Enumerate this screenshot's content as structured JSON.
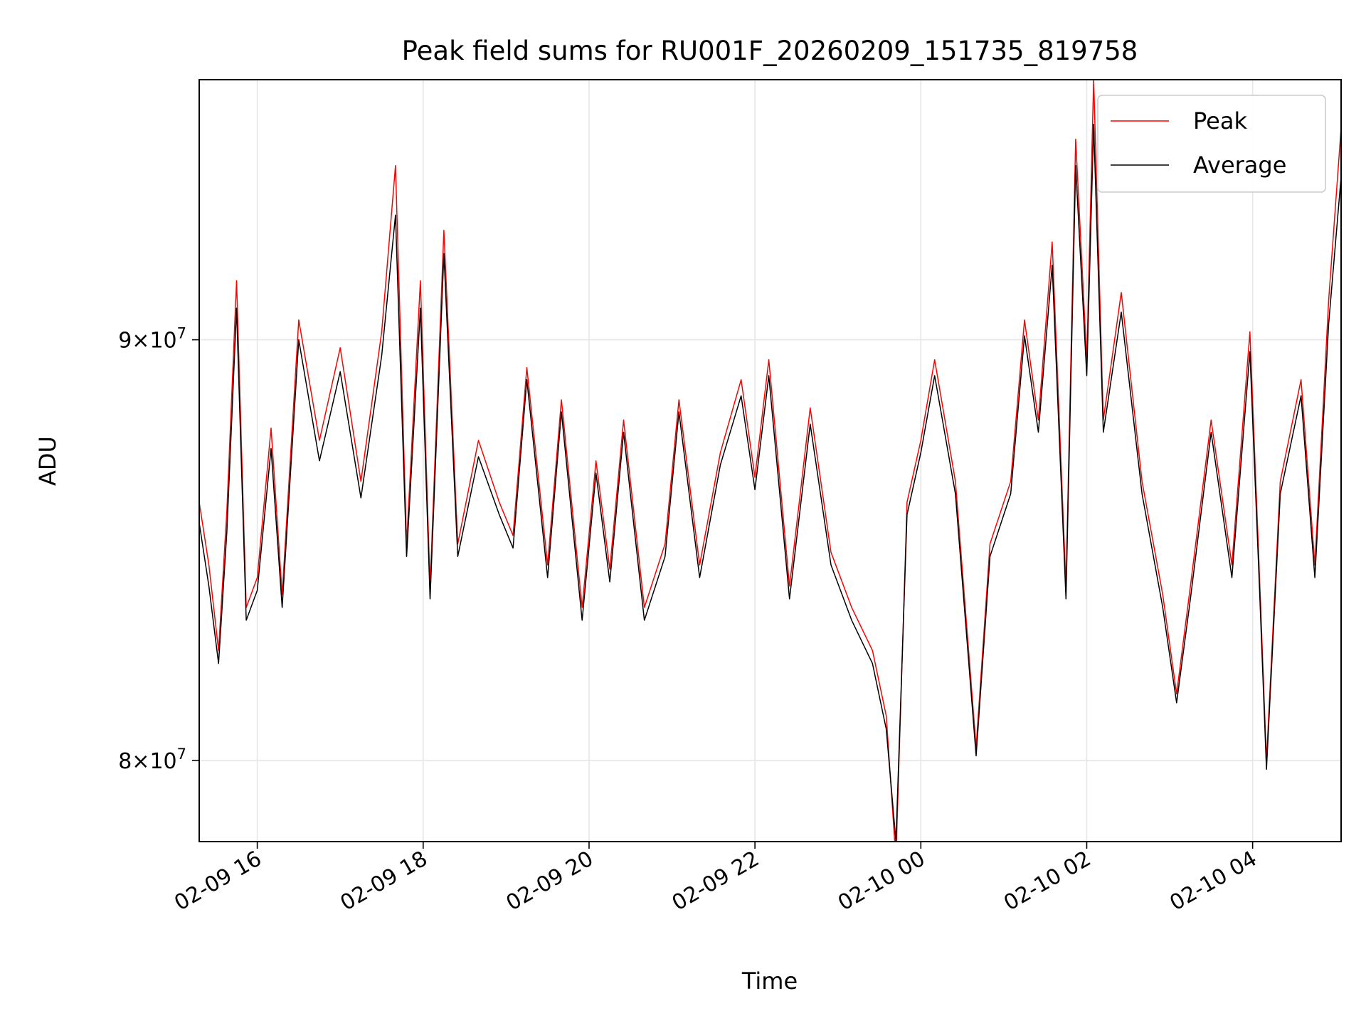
{
  "chart_data": {
    "type": "line",
    "title": "Peak field sums for RU001F_20260209_151735_819758",
    "xlabel": "Time",
    "ylabel": "ADU",
    "y_scale": "log",
    "xlim": [
      "2026-02-09 15:18",
      "2026-02-10 05:04"
    ],
    "ylim": [
      78200000,
      96800000
    ],
    "grid": true,
    "legend_position": "top-right",
    "x_ticks": [
      {
        "value": "2026-02-09 16:00",
        "label": "02-09 16"
      },
      {
        "value": "2026-02-09 18:00",
        "label": "02-09 18"
      },
      {
        "value": "2026-02-09 20:00",
        "label": "02-09 20"
      },
      {
        "value": "2026-02-09 22:00",
        "label": "02-09 22"
      },
      {
        "value": "2026-02-10 00:00",
        "label": "02-10 00"
      },
      {
        "value": "2026-02-10 02:00",
        "label": "02-10 02"
      },
      {
        "value": "2026-02-10 04:00",
        "label": "02-10 04"
      }
    ],
    "y_ticks": [
      {
        "value": 80000000,
        "mantissa": "8",
        "exponent": "7"
      },
      {
        "value": 90000000,
        "mantissa": "9",
        "exponent": "7"
      }
    ],
    "series": [
      {
        "name": "Peak",
        "color": "#ff0000",
        "points": [
          [
            "2026-02-09 15:18",
            86000000
          ],
          [
            "2026-02-09 15:25",
            84500000
          ],
          [
            "2026-02-09 15:32",
            82500000
          ],
          [
            "2026-02-09 15:38",
            85800000
          ],
          [
            "2026-02-09 15:45",
            91500000
          ],
          [
            "2026-02-09 15:52",
            83500000
          ],
          [
            "2026-02-09 16:00",
            84200000
          ],
          [
            "2026-02-09 16:10",
            87800000
          ],
          [
            "2026-02-09 16:18",
            83800000
          ],
          [
            "2026-02-09 16:30",
            90500000
          ],
          [
            "2026-02-09 16:45",
            87500000
          ],
          [
            "2026-02-09 17:00",
            89800000
          ],
          [
            "2026-02-09 17:15",
            86500000
          ],
          [
            "2026-02-09 17:30",
            90200000
          ],
          [
            "2026-02-09 17:40",
            94500000
          ],
          [
            "2026-02-09 17:48",
            85000000
          ],
          [
            "2026-02-09 17:58",
            91500000
          ],
          [
            "2026-02-09 18:05",
            84000000
          ],
          [
            "2026-02-09 18:15",
            92800000
          ],
          [
            "2026-02-09 18:25",
            85000000
          ],
          [
            "2026-02-09 18:40",
            87500000
          ],
          [
            "2026-02-09 18:55",
            86000000
          ],
          [
            "2026-02-09 19:05",
            85200000
          ],
          [
            "2026-02-09 19:15",
            89300000
          ],
          [
            "2026-02-09 19:30",
            84500000
          ],
          [
            "2026-02-09 19:40",
            88500000
          ],
          [
            "2026-02-09 19:55",
            83500000
          ],
          [
            "2026-02-09 20:05",
            87000000
          ],
          [
            "2026-02-09 20:15",
            84400000
          ],
          [
            "2026-02-09 20:25",
            88000000
          ],
          [
            "2026-02-09 20:40",
            83500000
          ],
          [
            "2026-02-09 20:55",
            85000000
          ],
          [
            "2026-02-09 21:05",
            88500000
          ],
          [
            "2026-02-09 21:20",
            84500000
          ],
          [
            "2026-02-09 21:35",
            87200000
          ],
          [
            "2026-02-09 21:50",
            89000000
          ],
          [
            "2026-02-09 22:00",
            86600000
          ],
          [
            "2026-02-09 22:10",
            89500000
          ],
          [
            "2026-02-09 22:25",
            84000000
          ],
          [
            "2026-02-09 22:40",
            88300000
          ],
          [
            "2026-02-09 22:55",
            84800000
          ],
          [
            "2026-02-09 23:10",
            83500000
          ],
          [
            "2026-02-09 23:25",
            82500000
          ],
          [
            "2026-02-09 23:35",
            81000000
          ],
          [
            "2026-02-09 23:42",
            77800000
          ],
          [
            "2026-02-09 23:50",
            86000000
          ],
          [
            "2026-02-10 00:00",
            87500000
          ],
          [
            "2026-02-10 00:10",
            89500000
          ],
          [
            "2026-02-10 00:25",
            86500000
          ],
          [
            "2026-02-10 00:40",
            80300000
          ],
          [
            "2026-02-10 00:50",
            85000000
          ],
          [
            "2026-02-10 01:05",
            86500000
          ],
          [
            "2026-02-10 01:15",
            90500000
          ],
          [
            "2026-02-10 01:25",
            88000000
          ],
          [
            "2026-02-10 01:35",
            92500000
          ],
          [
            "2026-02-10 01:45",
            84000000
          ],
          [
            "2026-02-10 01:52",
            95200000
          ],
          [
            "2026-02-10 02:00",
            89500000
          ],
          [
            "2026-02-10 02:05",
            96800000
          ],
          [
            "2026-02-10 02:12",
            88000000
          ],
          [
            "2026-02-10 02:25",
            91200000
          ],
          [
            "2026-02-10 02:40",
            86500000
          ],
          [
            "2026-02-10 02:55",
            83800000
          ],
          [
            "2026-02-10 03:05",
            81500000
          ],
          [
            "2026-02-10 03:15",
            84000000
          ],
          [
            "2026-02-10 03:30",
            88000000
          ],
          [
            "2026-02-10 03:45",
            84500000
          ],
          [
            "2026-02-10 03:58",
            90200000
          ],
          [
            "2026-02-10 04:05",
            84200000
          ],
          [
            "2026-02-10 04:10",
            80000000
          ],
          [
            "2026-02-10 04:20",
            86500000
          ],
          [
            "2026-02-10 04:35",
            89000000
          ],
          [
            "2026-02-10 04:45",
            84500000
          ],
          [
            "2026-02-10 04:55",
            91000000
          ],
          [
            "2026-02-10 05:04",
            95500000
          ]
        ]
      },
      {
        "name": "Average",
        "color": "#000000",
        "points": [
          [
            "2026-02-09 15:18",
            85500000
          ],
          [
            "2026-02-09 15:25",
            84000000
          ],
          [
            "2026-02-09 15:32",
            82200000
          ],
          [
            "2026-02-09 15:38",
            85300000
          ],
          [
            "2026-02-09 15:45",
            90800000
          ],
          [
            "2026-02-09 15:52",
            83200000
          ],
          [
            "2026-02-09 16:00",
            83900000
          ],
          [
            "2026-02-09 16:10",
            87300000
          ],
          [
            "2026-02-09 16:18",
            83500000
          ],
          [
            "2026-02-09 16:30",
            90000000
          ],
          [
            "2026-02-09 16:45",
            87000000
          ],
          [
            "2026-02-09 17:00",
            89200000
          ],
          [
            "2026-02-09 17:15",
            86100000
          ],
          [
            "2026-02-09 17:30",
            89600000
          ],
          [
            "2026-02-09 17:40",
            93200000
          ],
          [
            "2026-02-09 17:48",
            84700000
          ],
          [
            "2026-02-09 17:58",
            90800000
          ],
          [
            "2026-02-09 18:05",
            83700000
          ],
          [
            "2026-02-09 18:15",
            92200000
          ],
          [
            "2026-02-09 18:25",
            84700000
          ],
          [
            "2026-02-09 18:40",
            87100000
          ],
          [
            "2026-02-09 18:55",
            85700000
          ],
          [
            "2026-02-09 19:05",
            84900000
          ],
          [
            "2026-02-09 19:15",
            89000000
          ],
          [
            "2026-02-09 19:30",
            84200000
          ],
          [
            "2026-02-09 19:40",
            88200000
          ],
          [
            "2026-02-09 19:55",
            83200000
          ],
          [
            "2026-02-09 20:05",
            86700000
          ],
          [
            "2026-02-09 20:15",
            84100000
          ],
          [
            "2026-02-09 20:25",
            87700000
          ],
          [
            "2026-02-09 20:40",
            83200000
          ],
          [
            "2026-02-09 20:55",
            84700000
          ],
          [
            "2026-02-09 21:05",
            88200000
          ],
          [
            "2026-02-09 21:20",
            84200000
          ],
          [
            "2026-02-09 21:35",
            86900000
          ],
          [
            "2026-02-09 21:50",
            88600000
          ],
          [
            "2026-02-09 22:00",
            86300000
          ],
          [
            "2026-02-09 22:10",
            89100000
          ],
          [
            "2026-02-09 22:25",
            83700000
          ],
          [
            "2026-02-09 22:40",
            87900000
          ],
          [
            "2026-02-09 22:55",
            84500000
          ],
          [
            "2026-02-09 23:10",
            83200000
          ],
          [
            "2026-02-09 23:25",
            82200000
          ],
          [
            "2026-02-09 23:35",
            80700000
          ],
          [
            "2026-02-09 23:42",
            78200000
          ],
          [
            "2026-02-09 23:50",
            85700000
          ],
          [
            "2026-02-10 00:00",
            87200000
          ],
          [
            "2026-02-10 00:10",
            89100000
          ],
          [
            "2026-02-10 00:25",
            86200000
          ],
          [
            "2026-02-10 00:40",
            80100000
          ],
          [
            "2026-02-10 00:50",
            84700000
          ],
          [
            "2026-02-10 01:05",
            86200000
          ],
          [
            "2026-02-10 01:15",
            90100000
          ],
          [
            "2026-02-10 01:25",
            87700000
          ],
          [
            "2026-02-10 01:35",
            91900000
          ],
          [
            "2026-02-10 01:45",
            83700000
          ],
          [
            "2026-02-10 01:52",
            94500000
          ],
          [
            "2026-02-10 02:00",
            89100000
          ],
          [
            "2026-02-10 02:05",
            95600000
          ],
          [
            "2026-02-10 02:12",
            87700000
          ],
          [
            "2026-02-10 02:25",
            90700000
          ],
          [
            "2026-02-10 02:40",
            86200000
          ],
          [
            "2026-02-10 02:55",
            83500000
          ],
          [
            "2026-02-10 03:05",
            81300000
          ],
          [
            "2026-02-10 03:15",
            83700000
          ],
          [
            "2026-02-10 03:30",
            87700000
          ],
          [
            "2026-02-10 03:45",
            84200000
          ],
          [
            "2026-02-10 03:58",
            89700000
          ],
          [
            "2026-02-10 04:05",
            83900000
          ],
          [
            "2026-02-10 04:10",
            79800000
          ],
          [
            "2026-02-10 04:20",
            86200000
          ],
          [
            "2026-02-10 04:35",
            88600000
          ],
          [
            "2026-02-10 04:45",
            84200000
          ],
          [
            "2026-02-10 04:55",
            90400000
          ],
          [
            "2026-02-10 05:04",
            94200000
          ]
        ]
      }
    ]
  }
}
